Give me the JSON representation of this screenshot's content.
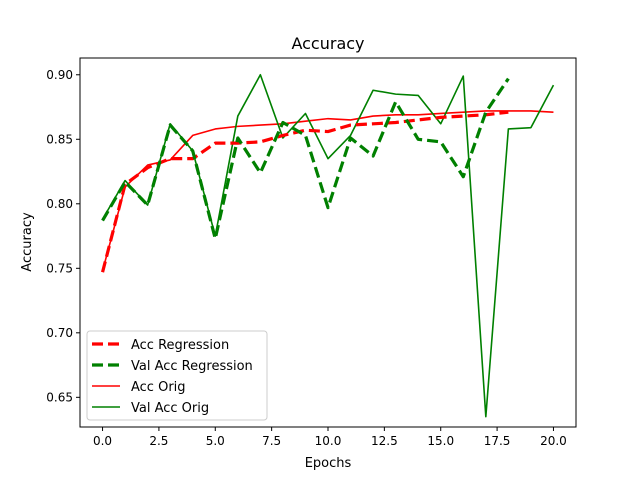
{
  "chart_data": {
    "type": "line",
    "title": "Accuracy",
    "xlabel": "Epochs",
    "ylabel": "Accuracy",
    "xlim": [
      -1,
      21
    ],
    "ylim": [
      0.627,
      0.913
    ],
    "xticks": [
      0.0,
      2.5,
      5.0,
      7.5,
      10.0,
      12.5,
      15.0,
      17.5,
      20.0
    ],
    "xtick_labels": [
      "0.0",
      "2.5",
      "5.0",
      "7.5",
      "10.0",
      "12.5",
      "15.0",
      "17.5",
      "20.0"
    ],
    "yticks": [
      0.65,
      0.7,
      0.75,
      0.8,
      0.85,
      0.9
    ],
    "ytick_labels": [
      "0.65",
      "0.70",
      "0.75",
      "0.80",
      "0.85",
      "0.90"
    ],
    "grid": false,
    "legend_position": "lower-left",
    "series": [
      {
        "name": "Acc Regression",
        "color": "#ff0000",
        "style": "dashed",
        "width": "thick",
        "x": [
          0,
          1,
          2,
          3,
          4,
          5,
          6,
          7,
          8,
          9,
          10,
          11,
          12,
          13,
          14,
          15,
          16,
          17,
          18
        ],
        "values": [
          0.747,
          0.815,
          0.828,
          0.835,
          0.835,
          0.847,
          0.847,
          0.848,
          0.853,
          0.857,
          0.856,
          0.861,
          0.862,
          0.863,
          0.865,
          0.867,
          0.868,
          0.869,
          0.871
        ]
      },
      {
        "name": "Val Acc Regression",
        "color": "#008000",
        "style": "dashed",
        "width": "thick",
        "x": [
          0,
          1,
          2,
          3,
          4,
          5,
          6,
          7,
          8,
          9,
          10,
          11,
          12,
          13,
          14,
          15,
          16,
          17,
          18
        ],
        "values": [
          0.787,
          0.817,
          0.799,
          0.861,
          0.841,
          0.773,
          0.851,
          0.824,
          0.863,
          0.853,
          0.797,
          0.851,
          0.837,
          0.879,
          0.85,
          0.848,
          0.821,
          0.871,
          0.897
        ]
      },
      {
        "name": "Acc Orig",
        "color": "#ff0000",
        "style": "solid",
        "width": "thin",
        "x": [
          0,
          1,
          2,
          3,
          4,
          5,
          6,
          7,
          8,
          9,
          10,
          11,
          12,
          13,
          14,
          15,
          16,
          17,
          18,
          19,
          20
        ],
        "values": [
          0.748,
          0.813,
          0.83,
          0.834,
          0.853,
          0.858,
          0.86,
          0.861,
          0.862,
          0.864,
          0.866,
          0.865,
          0.868,
          0.869,
          0.869,
          0.87,
          0.871,
          0.872,
          0.872,
          0.872,
          0.871
        ]
      },
      {
        "name": "Val Acc Orig",
        "color": "#008000",
        "style": "solid",
        "width": "thin",
        "x": [
          0,
          1,
          2,
          3,
          4,
          5,
          6,
          7,
          8,
          9,
          10,
          11,
          12,
          13,
          14,
          15,
          16,
          17,
          18,
          19,
          20
        ],
        "values": [
          0.788,
          0.818,
          0.799,
          0.862,
          0.841,
          0.775,
          0.868,
          0.9,
          0.851,
          0.87,
          0.835,
          0.853,
          0.888,
          0.885,
          0.884,
          0.862,
          0.899,
          0.635,
          0.858,
          0.859,
          0.892
        ]
      }
    ]
  }
}
